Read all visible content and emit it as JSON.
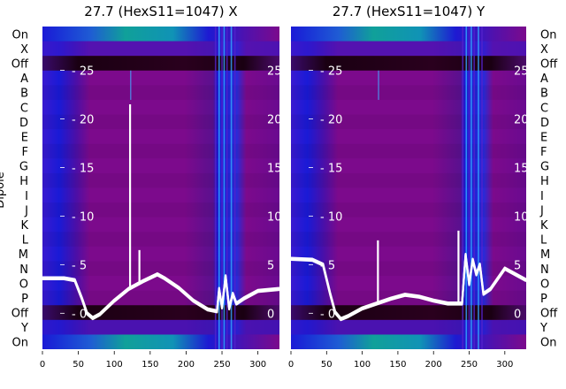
{
  "figure": {
    "left_ylabel": "Dipole",
    "row_labels": [
      "On",
      "X",
      "Off",
      "A",
      "B",
      "C",
      "D",
      "E",
      "F",
      "G",
      "H",
      "I",
      "J",
      "K",
      "L",
      "M",
      "N",
      "O",
      "P",
      "Off",
      "Y",
      "On"
    ],
    "colors": {
      "line": "#ffffff",
      "band_dark": "#1a0012",
      "magenta": "#7c0a8c",
      "blue": "#1a1ad6",
      "teal": "#0aa89a",
      "light_blue": "#1f8fe0"
    }
  },
  "chart_data": [
    {
      "type": "heatmap",
      "title": "27.7 (HexS11=1047) X",
      "xlim": [
        0,
        330
      ],
      "xticks": [
        0,
        50,
        100,
        150,
        200,
        250,
        300
      ],
      "overlay_ylim": [
        -3.7,
        29.5
      ],
      "overlay_yticks": [
        0,
        5,
        10,
        15,
        20,
        25
      ],
      "overlay_line": {
        "x": [
          0,
          30,
          45,
          55,
          62,
          70,
          80,
          100,
          120,
          140,
          160,
          170,
          190,
          210,
          230,
          243,
          246,
          250,
          255,
          260,
          265,
          270,
          280,
          300,
          330
        ],
        "y": [
          3.6,
          3.6,
          3.4,
          1.5,
          0,
          -0.5,
          -0.1,
          1.3,
          2.5,
          3.3,
          4.0,
          3.6,
          2.6,
          1.3,
          0.4,
          0.2,
          2.5,
          0.6,
          3.8,
          0.5,
          2.0,
          1.0,
          1.5,
          2.3,
          2.5
        ],
        "spikes": [
          {
            "x": 122,
            "y": 21.5
          },
          {
            "x": 135,
            "y": 6.5
          }
        ]
      }
    },
    {
      "type": "heatmap",
      "title": "27.7 (HexS11=1047) Y",
      "xlim": [
        0,
        330
      ],
      "xticks": [
        0,
        50,
        100,
        150,
        200,
        250,
        300
      ],
      "overlay_ylim": [
        -3.7,
        29.5
      ],
      "overlay_yticks": [
        0,
        5,
        10,
        15,
        20,
        25
      ],
      "overlay_line": {
        "x": [
          0,
          30,
          45,
          55,
          62,
          70,
          80,
          100,
          120,
          140,
          160,
          180,
          200,
          220,
          240,
          245,
          250,
          255,
          260,
          265,
          270,
          280,
          300,
          330
        ],
        "y": [
          5.6,
          5.5,
          5.0,
          2.0,
          0.1,
          -0.6,
          -0.3,
          0.5,
          1.0,
          1.5,
          1.9,
          1.7,
          1.3,
          1.0,
          1.0,
          6.0,
          3.0,
          5.5,
          4.0,
          5.0,
          2.0,
          2.5,
          4.6,
          3.4
        ],
        "spikes": [
          {
            "x": 122,
            "y": 7.5
          },
          {
            "x": 235,
            "y": 8.5
          }
        ]
      }
    }
  ]
}
